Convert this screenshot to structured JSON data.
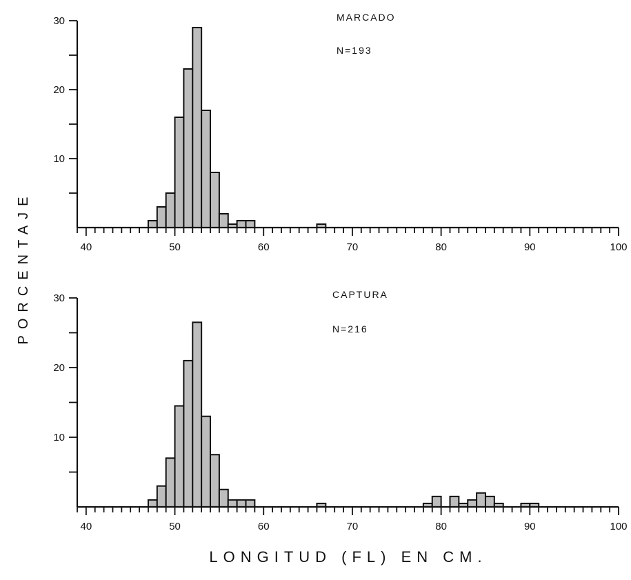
{
  "figure": {
    "ylabel": "PORCENTAJE",
    "xlabel": "LONGITUD (FL) EN CM.",
    "fill_color": "#bdbdbd",
    "stroke_color": "#111111"
  },
  "chart_data": [
    {
      "type": "bar",
      "annotation": "MARCADO",
      "n_label": "N=193",
      "x_range": [
        39,
        100
      ],
      "ylim": [
        0,
        30
      ],
      "x_tick_labels": [
        "40",
        "50",
        "60",
        "70",
        "80",
        "90",
        "100"
      ],
      "y_tick_labels": [
        "10",
        "20",
        "30"
      ],
      "bin_width": 1,
      "bin_starts": [
        47,
        48,
        49,
        50,
        51,
        52,
        53,
        54,
        55,
        56,
        57,
        58,
        66
      ],
      "values": [
        1,
        3,
        5,
        16,
        23,
        29,
        17,
        8,
        2,
        0.5,
        1,
        1,
        0.5
      ]
    },
    {
      "type": "bar",
      "annotation": "CAPTURA",
      "n_label": "N=216",
      "x_range": [
        39,
        100
      ],
      "ylim": [
        0,
        30
      ],
      "x_tick_labels": [
        "40",
        "50",
        "60",
        "70",
        "80",
        "90",
        "100"
      ],
      "y_tick_labels": [
        "10",
        "20",
        "30"
      ],
      "bin_width": 1,
      "bin_starts": [
        47,
        48,
        49,
        50,
        51,
        52,
        53,
        54,
        55,
        56,
        57,
        58,
        66,
        78,
        79,
        81,
        82,
        83,
        84,
        85,
        86,
        89,
        90
      ],
      "values": [
        1,
        3,
        7,
        14.5,
        21,
        26.5,
        13,
        7.5,
        2.5,
        1,
        1,
        1,
        0.5,
        0.5,
        1.5,
        1.5,
        0.5,
        1,
        2,
        1.5,
        0.5,
        0.5,
        0.5
      ]
    }
  ]
}
